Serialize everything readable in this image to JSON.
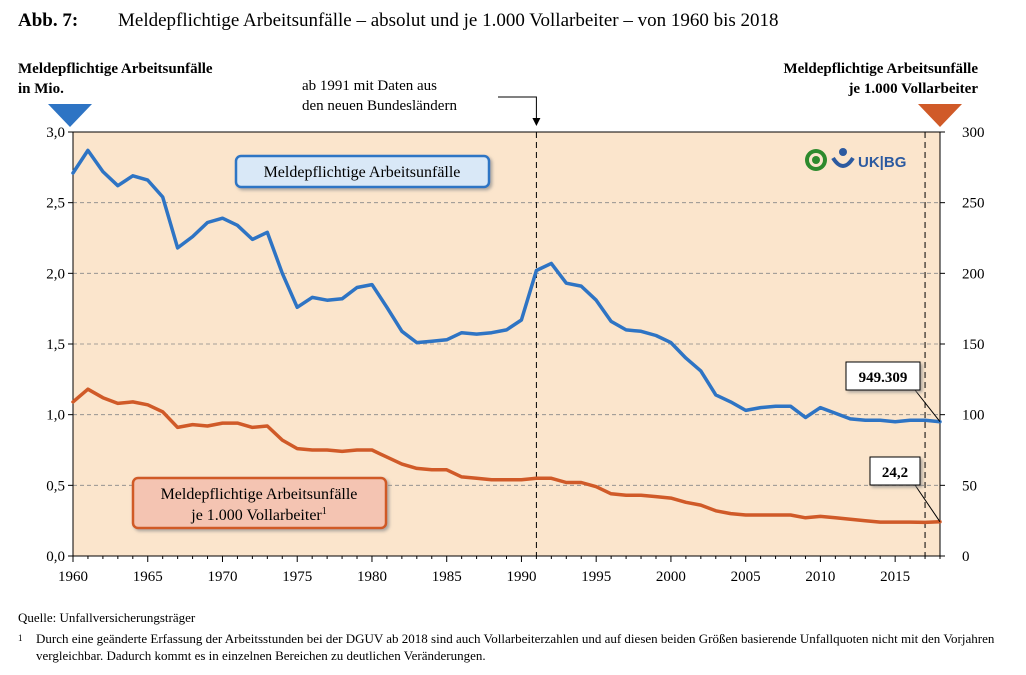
{
  "figure": {
    "number": "Abb. 7:",
    "title": "Meldepflichtige Arbeitsunfälle – absolut und je 1.000 Vollarbeiter – von 1960 bis 2018"
  },
  "axis_titles": {
    "left_line1": "Meldepflichtige Arbeitsunfälle",
    "left_line2": "in Mio.",
    "right_line1": "Meldepflichtige Arbeitsunfälle",
    "right_line2": "je 1.000 Vollarbeiter"
  },
  "annotation_1991": {
    "line1": "ab 1991 mit Daten aus",
    "line2": "den neuen Bundesländern"
  },
  "logo": {
    "text": "UK|BG"
  },
  "source": "Quelle: Unfallversicherungsträger",
  "footnote": {
    "marker": "1",
    "text": "Durch eine geänderte Erfassung der Arbeitsstunden bei der DGUV ab 2018 sind auch Vollarbeiterzahlen und auf diesen beiden Größen basierende Unfallquoten nicht mit den Vorjahren vergleichbar. Dadurch kommt es in einzelnen Bereichen zu deutlichen Veränderungen."
  },
  "colors": {
    "plot_background": "#fbe5cc",
    "blue": "#2e74c4",
    "orange": "#d05a28",
    "blue_box_fill": "#d9e8f7",
    "orange_box_fill": "#f4c4b2",
    "logo_green": "#2d8a2d",
    "logo_blue": "#2c5aa0"
  },
  "chart_data": {
    "type": "line",
    "x_range": [
      1960,
      2018
    ],
    "y_left_range": [
      0,
      3.0
    ],
    "y_right_range": [
      0,
      300
    ],
    "x_ticks": [
      "1960",
      "1965",
      "1970",
      "1975",
      "1980",
      "1985",
      "1990",
      "1995",
      "2000",
      "2005",
      "2010",
      "2015"
    ],
    "y_left_ticks": [
      "0,0",
      "0,5",
      "1,0",
      "1,5",
      "2,0",
      "2,5",
      "3,0"
    ],
    "y_right_ticks": [
      "0",
      "50",
      "100",
      "150",
      "200",
      "250",
      "300"
    ],
    "grid": "horizontal dashed",
    "reference_lines": [
      1991,
      2017
    ],
    "series": [
      {
        "name": "Meldepflichtige Arbeitsunfälle",
        "axis": "left",
        "color": "#2e74c4",
        "x": [
          1960,
          1961,
          1962,
          1963,
          1964,
          1965,
          1966,
          1967,
          1968,
          1969,
          1970,
          1971,
          1972,
          1973,
          1974,
          1975,
          1976,
          1977,
          1978,
          1979,
          1980,
          1981,
          1982,
          1983,
          1984,
          1985,
          1986,
          1987,
          1988,
          1989,
          1990,
          1991,
          1992,
          1993,
          1994,
          1995,
          1996,
          1997,
          1998,
          1999,
          2000,
          2001,
          2002,
          2003,
          2004,
          2005,
          2006,
          2007,
          2008,
          2009,
          2010,
          2011,
          2012,
          2013,
          2014,
          2015,
          2016,
          2017,
          2018
        ],
        "y": [
          2.71,
          2.87,
          2.72,
          2.62,
          2.69,
          2.66,
          2.54,
          2.18,
          2.26,
          2.36,
          2.39,
          2.34,
          2.24,
          2.29,
          2.0,
          1.76,
          1.83,
          1.81,
          1.82,
          1.9,
          1.92,
          1.76,
          1.59,
          1.51,
          1.52,
          1.53,
          1.58,
          1.57,
          1.58,
          1.6,
          1.67,
          2.02,
          2.07,
          1.93,
          1.91,
          1.81,
          1.66,
          1.6,
          1.59,
          1.56,
          1.51,
          1.4,
          1.31,
          1.14,
          1.09,
          1.03,
          1.05,
          1.06,
          1.06,
          0.98,
          1.05,
          1.01,
          0.97,
          0.96,
          0.96,
          0.95,
          0.96,
          0.96,
          0.95
        ]
      },
      {
        "name": "Meldepflichtige Arbeitsunfälle je 1.000 Vollarbeiter",
        "axis": "right",
        "color": "#d05a28",
        "x": [
          1960,
          1961,
          1962,
          1963,
          1964,
          1965,
          1966,
          1967,
          1968,
          1969,
          1970,
          1971,
          1972,
          1973,
          1974,
          1975,
          1976,
          1977,
          1978,
          1979,
          1980,
          1981,
          1982,
          1983,
          1984,
          1985,
          1986,
          1987,
          1988,
          1989,
          1990,
          1991,
          1992,
          1993,
          1994,
          1995,
          1996,
          1997,
          1998,
          1999,
          2000,
          2001,
          2002,
          2003,
          2004,
          2005,
          2006,
          2007,
          2008,
          2009,
          2010,
          2011,
          2012,
          2013,
          2014,
          2015,
          2016,
          2017,
          2018
        ],
        "y": [
          109,
          118,
          112,
          108,
          109,
          107,
          102,
          91,
          93,
          92,
          94,
          94,
          91,
          92,
          82,
          76,
          75,
          75,
          74,
          75,
          75,
          70,
          65,
          62,
          61,
          61,
          56,
          55,
          54,
          54,
          54,
          55,
          55,
          52,
          52,
          49,
          44,
          43,
          43,
          42,
          41,
          38,
          36,
          32,
          30,
          29,
          29,
          29,
          29,
          27,
          28,
          27,
          26,
          25,
          24,
          24,
          24,
          23.8,
          24.2
        ]
      }
    ],
    "legend": [
      {
        "text": "Meldepflichtige Arbeitsunfälle",
        "series": 0
      },
      {
        "line1": "Meldepflichtige Arbeitsunfälle",
        "line2": "je 1.000 Vollarbeiter",
        "sup": "1",
        "series": 1
      }
    ],
    "callouts": [
      {
        "text": "949.309",
        "series": 0,
        "x": 2018
      },
      {
        "text": "24,2",
        "series": 1,
        "x": 2018
      }
    ]
  }
}
